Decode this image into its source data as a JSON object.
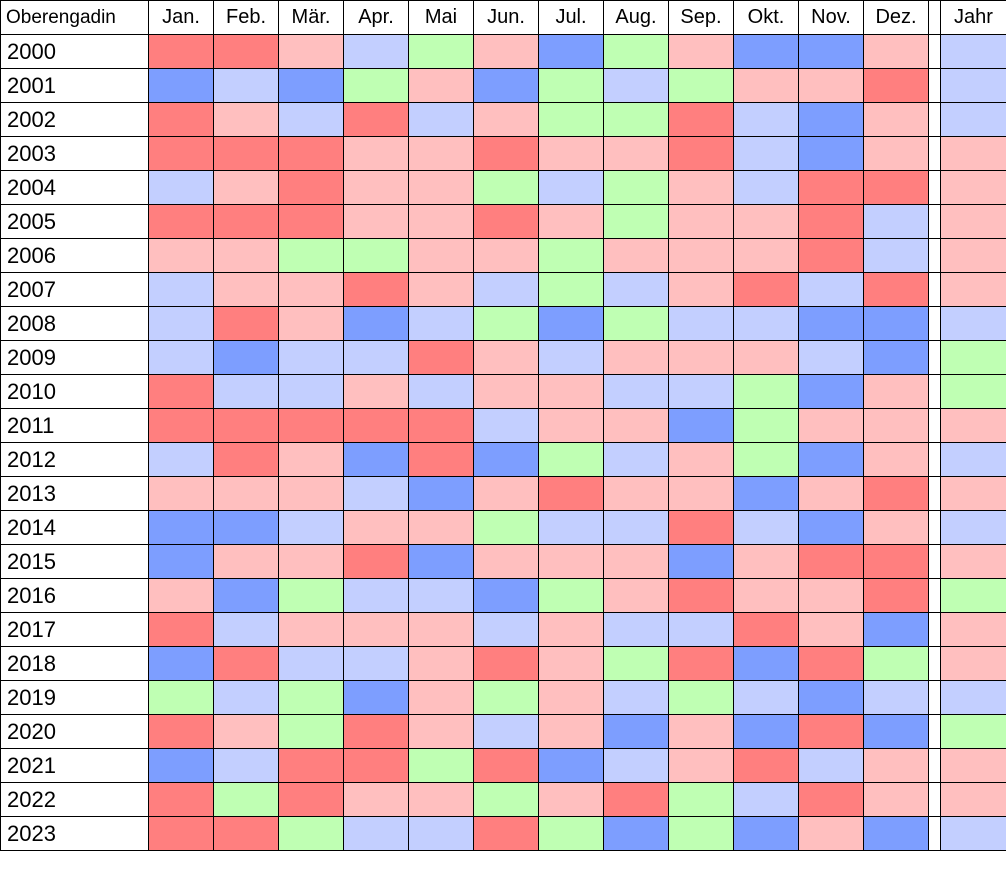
{
  "chart_data": {
    "type": "heatmap",
    "title": "Oberengadin",
    "columns": [
      "Jan.",
      "Feb.",
      "Mär.",
      "Apr.",
      "Mai",
      "Jun.",
      "Jul.",
      "Aug.",
      "Sep.",
      "Okt.",
      "Nov.",
      "Dez."
    ],
    "annual_column": "Jahr",
    "rows": [
      "2000",
      "2001",
      "2002",
      "2003",
      "2004",
      "2005",
      "2006",
      "2007",
      "2008",
      "2009",
      "2010",
      "2011",
      "2012",
      "2013",
      "2014",
      "2015",
      "2016",
      "2017",
      "2018",
      "2019",
      "2020",
      "2021",
      "2022",
      "2023"
    ],
    "palette": {
      "very_warm": "#ff7f7f",
      "warm": "#ffbfbf",
      "cool": "#c3cfff",
      "very_cool": "#7d9eff",
      "normal": "#bfffb3"
    },
    "months": [
      [
        "very_warm",
        "very_warm",
        "warm",
        "cool",
        "normal",
        "warm",
        "very_cool",
        "normal",
        "warm",
        "very_cool",
        "very_cool",
        "warm"
      ],
      [
        "very_cool",
        "cool",
        "very_cool",
        "normal",
        "warm",
        "very_cool",
        "normal",
        "cool",
        "normal",
        "warm",
        "warm",
        "very_warm"
      ],
      [
        "very_warm",
        "warm",
        "cool",
        "very_warm",
        "cool",
        "warm",
        "normal",
        "normal",
        "very_warm",
        "cool",
        "very_cool",
        "warm"
      ],
      [
        "very_warm",
        "very_warm",
        "very_warm",
        "warm",
        "warm",
        "very_warm",
        "warm",
        "warm",
        "very_warm",
        "cool",
        "very_cool",
        "warm"
      ],
      [
        "cool",
        "warm",
        "very_warm",
        "warm",
        "warm",
        "normal",
        "cool",
        "normal",
        "warm",
        "cool",
        "very_warm",
        "very_warm"
      ],
      [
        "very_warm",
        "very_warm",
        "very_warm",
        "warm",
        "warm",
        "very_warm",
        "warm",
        "normal",
        "warm",
        "warm",
        "very_warm",
        "cool"
      ],
      [
        "warm",
        "warm",
        "normal",
        "normal",
        "warm",
        "warm",
        "normal",
        "warm",
        "warm",
        "warm",
        "very_warm",
        "cool"
      ],
      [
        "cool",
        "warm",
        "warm",
        "very_warm",
        "warm",
        "cool",
        "normal",
        "cool",
        "warm",
        "very_warm",
        "cool",
        "very_warm"
      ],
      [
        "cool",
        "very_warm",
        "warm",
        "very_cool",
        "cool",
        "normal",
        "very_cool",
        "normal",
        "cool",
        "cool",
        "very_cool",
        "very_cool"
      ],
      [
        "cool",
        "very_cool",
        "cool",
        "cool",
        "very_warm",
        "warm",
        "cool",
        "warm",
        "warm",
        "warm",
        "cool",
        "very_cool"
      ],
      [
        "very_warm",
        "cool",
        "cool",
        "warm",
        "cool",
        "warm",
        "warm",
        "cool",
        "cool",
        "normal",
        "very_cool",
        "warm"
      ],
      [
        "very_warm",
        "very_warm",
        "very_warm",
        "very_warm",
        "very_warm",
        "cool",
        "warm",
        "warm",
        "very_cool",
        "normal",
        "warm",
        "warm"
      ],
      [
        "cool",
        "very_warm",
        "warm",
        "very_cool",
        "very_warm",
        "very_cool",
        "normal",
        "cool",
        "warm",
        "normal",
        "very_cool",
        "warm"
      ],
      [
        "warm",
        "warm",
        "warm",
        "cool",
        "very_cool",
        "warm",
        "very_warm",
        "warm",
        "warm",
        "very_cool",
        "warm",
        "very_warm"
      ],
      [
        "very_cool",
        "very_cool",
        "cool",
        "warm",
        "warm",
        "normal",
        "cool",
        "cool",
        "very_warm",
        "cool",
        "very_cool",
        "warm"
      ],
      [
        "very_cool",
        "warm",
        "warm",
        "very_warm",
        "very_cool",
        "warm",
        "warm",
        "warm",
        "very_cool",
        "warm",
        "very_warm",
        "very_warm"
      ],
      [
        "warm",
        "very_cool",
        "normal",
        "cool",
        "cool",
        "very_cool",
        "normal",
        "warm",
        "very_warm",
        "warm",
        "warm",
        "very_warm"
      ],
      [
        "very_warm",
        "cool",
        "warm",
        "warm",
        "warm",
        "cool",
        "warm",
        "cool",
        "cool",
        "very_warm",
        "warm",
        "very_cool"
      ],
      [
        "very_cool",
        "very_warm",
        "cool",
        "cool",
        "warm",
        "very_warm",
        "warm",
        "normal",
        "very_warm",
        "very_cool",
        "very_warm",
        "normal"
      ],
      [
        "normal",
        "cool",
        "normal",
        "very_cool",
        "warm",
        "normal",
        "warm",
        "cool",
        "normal",
        "cool",
        "very_cool",
        "cool"
      ],
      [
        "very_warm",
        "warm",
        "normal",
        "very_warm",
        "warm",
        "cool",
        "warm",
        "very_cool",
        "warm",
        "very_cool",
        "very_warm",
        "very_cool"
      ],
      [
        "very_cool",
        "cool",
        "very_warm",
        "very_warm",
        "normal",
        "very_warm",
        "very_cool",
        "cool",
        "warm",
        "very_warm",
        "cool",
        "warm"
      ],
      [
        "very_warm",
        "normal",
        "very_warm",
        "warm",
        "warm",
        "normal",
        "warm",
        "very_warm",
        "normal",
        "cool",
        "very_warm",
        "warm"
      ],
      [
        "very_warm",
        "very_warm",
        "normal",
        "cool",
        "cool",
        "very_warm",
        "normal",
        "very_cool",
        "normal",
        "very_cool",
        "warm",
        "very_cool"
      ]
    ],
    "annual": [
      "cool",
      "cool",
      "cool",
      "warm",
      "warm",
      "warm",
      "warm",
      "warm",
      "cool",
      "normal",
      "normal",
      "warm",
      "cool",
      "warm",
      "cool",
      "warm",
      "normal",
      "warm",
      "warm",
      "cool",
      "normal",
      "warm",
      "warm",
      "cool"
    ]
  }
}
